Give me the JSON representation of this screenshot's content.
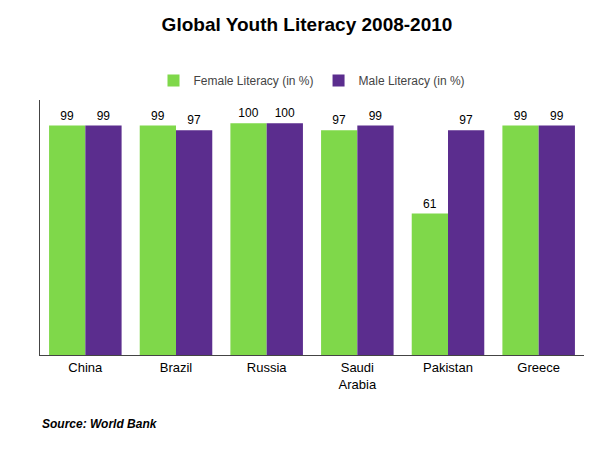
{
  "chart_data": {
    "type": "bar",
    "title": "Global Youth Literacy 2008-2010",
    "categories": [
      "China",
      "Brazil",
      "Russia",
      "Saudi\nArabia",
      "Pakistan",
      "Greece"
    ],
    "series": [
      {
        "name": "Female Literacy (in %)",
        "color": "#7FD84A",
        "values": [
          99,
          99,
          100,
          97,
          61,
          99
        ]
      },
      {
        "name": "Male Literacy (in %)",
        "color": "#5B2D8E",
        "values": [
          99,
          97,
          100,
          99,
          97,
          99
        ]
      }
    ],
    "ylim": [
      0,
      110
    ],
    "data_labels": true,
    "tick_labels": "x",
    "grid": false,
    "legend": "top",
    "annotations": [
      "Source: World Bank"
    ]
  }
}
